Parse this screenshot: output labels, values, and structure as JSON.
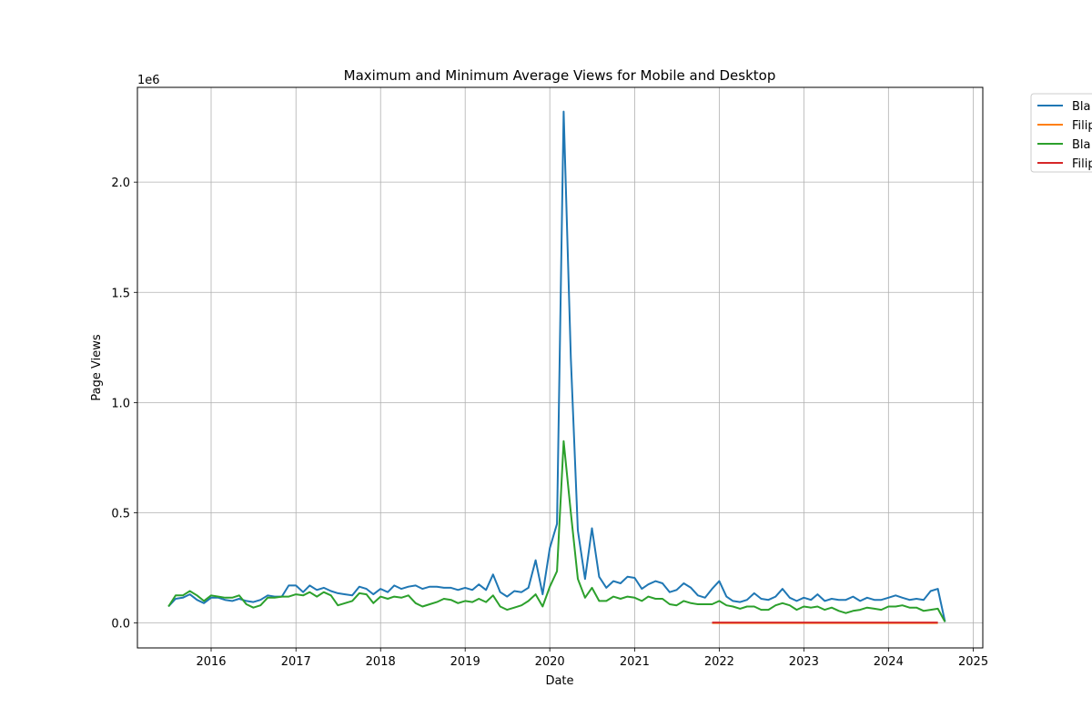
{
  "chart_data": {
    "type": "line",
    "title": "Maximum and Minimum Average Views for Mobile and Desktop",
    "xlabel": "Date",
    "ylabel": "Page Views",
    "y_offset_text": "1e6",
    "x_tick_labels": [
      "2016",
      "2017",
      "2018",
      "2019",
      "2020",
      "2021",
      "2022",
      "2023",
      "2024",
      "2025"
    ],
    "x_ticks": [
      "2016-01-01",
      "2017-01-01",
      "2018-01-01",
      "2019-01-01",
      "2020-01-01",
      "2021-01-01",
      "2022-01-01",
      "2023-01-01",
      "2024-01-01",
      "2025-01-01"
    ],
    "y_tick_labels": [
      "0.0",
      "0.5",
      "1.0",
      "1.5",
      "2.0"
    ],
    "y_ticks": [
      0,
      500000,
      1000000,
      1500000,
      2000000
    ],
    "xlim": [
      "2015-02-17",
      "2025-02-11"
    ],
    "ylim": [
      -113000,
      2430000
    ],
    "grid": true,
    "legend_position": "outside upper right",
    "series": [
      {
        "name": "Bla",
        "color": "#1f77b4",
        "x": [
          "2015-07-01",
          "2015-08-01",
          "2015-09-01",
          "2015-10-01",
          "2015-11-01",
          "2015-12-01",
          "2016-01-01",
          "2016-02-01",
          "2016-03-01",
          "2016-04-01",
          "2016-05-01",
          "2016-06-01",
          "2016-07-01",
          "2016-08-01",
          "2016-09-01",
          "2016-10-01",
          "2016-11-01",
          "2016-12-01",
          "2017-01-01",
          "2017-02-01",
          "2017-03-01",
          "2017-04-01",
          "2017-05-01",
          "2017-06-01",
          "2017-07-01",
          "2017-08-01",
          "2017-09-01",
          "2017-10-01",
          "2017-11-01",
          "2017-12-01",
          "2018-01-01",
          "2018-02-01",
          "2018-03-01",
          "2018-04-01",
          "2018-05-01",
          "2018-06-01",
          "2018-07-01",
          "2018-08-01",
          "2018-09-01",
          "2018-10-01",
          "2018-11-01",
          "2018-12-01",
          "2019-01-01",
          "2019-02-01",
          "2019-03-01",
          "2019-04-01",
          "2019-05-01",
          "2019-06-01",
          "2019-07-01",
          "2019-08-01",
          "2019-09-01",
          "2019-10-01",
          "2019-11-01",
          "2019-12-01",
          "2020-01-01",
          "2020-02-01",
          "2020-03-01",
          "2020-04-01",
          "2020-05-01",
          "2020-06-01",
          "2020-07-01",
          "2020-08-01",
          "2020-09-01",
          "2020-10-01",
          "2020-11-01",
          "2020-12-01",
          "2021-01-01",
          "2021-02-01",
          "2021-03-01",
          "2021-04-01",
          "2021-05-01",
          "2021-06-01",
          "2021-07-01",
          "2021-08-01",
          "2021-09-01",
          "2021-10-01",
          "2021-11-01",
          "2021-12-01",
          "2022-01-01",
          "2022-02-01",
          "2022-03-01",
          "2022-04-01",
          "2022-05-01",
          "2022-06-01",
          "2022-07-01",
          "2022-08-01",
          "2022-09-01",
          "2022-10-01",
          "2022-11-01",
          "2022-12-01",
          "2023-01-01",
          "2023-02-01",
          "2023-03-01",
          "2023-04-01",
          "2023-05-01",
          "2023-06-01",
          "2023-07-01",
          "2023-08-01",
          "2023-09-01",
          "2023-10-01",
          "2023-11-01",
          "2023-12-01",
          "2024-01-01",
          "2024-02-01",
          "2024-03-01",
          "2024-04-01",
          "2024-05-01",
          "2024-06-01",
          "2024-07-01",
          "2024-08-01",
          "2024-09-01"
        ],
        "values": [
          75000,
          110000,
          115000,
          130000,
          105000,
          90000,
          115000,
          115000,
          105000,
          100000,
          110000,
          100000,
          95000,
          105000,
          125000,
          120000,
          120000,
          170000,
          170000,
          140000,
          170000,
          150000,
          160000,
          145000,
          135000,
          130000,
          125000,
          165000,
          155000,
          130000,
          155000,
          140000,
          170000,
          155000,
          165000,
          170000,
          155000,
          165000,
          165000,
          160000,
          160000,
          150000,
          160000,
          150000,
          175000,
          150000,
          220000,
          140000,
          120000,
          145000,
          140000,
          160000,
          285000,
          130000,
          340000,
          450000,
          2320000,
          1200000,
          420000,
          200000,
          430000,
          210000,
          160000,
          190000,
          180000,
          210000,
          205000,
          155000,
          175000,
          190000,
          180000,
          140000,
          150000,
          180000,
          160000,
          125000,
          115000,
          155000,
          190000,
          120000,
          100000,
          95000,
          105000,
          135000,
          110000,
          105000,
          120000,
          155000,
          115000,
          100000,
          115000,
          105000,
          130000,
          100000,
          110000,
          105000,
          105000,
          120000,
          100000,
          115000,
          105000,
          105000,
          115000,
          125000,
          115000,
          105000,
          110000,
          105000,
          145000,
          155000,
          5000
        ]
      },
      {
        "name": "Filip",
        "color": "#ff7f0e",
        "x": [
          "2021-12-01",
          "2022-06-01",
          "2023-01-01",
          "2023-06-01",
          "2024-01-01",
          "2024-08-01"
        ],
        "values": [
          0,
          0,
          0,
          0,
          0,
          0
        ]
      },
      {
        "name": "Bla",
        "color": "#2ca02c",
        "x": [
          "2015-07-01",
          "2015-08-01",
          "2015-09-01",
          "2015-10-01",
          "2015-11-01",
          "2015-12-01",
          "2016-01-01",
          "2016-02-01",
          "2016-03-01",
          "2016-04-01",
          "2016-05-01",
          "2016-06-01",
          "2016-07-01",
          "2016-08-01",
          "2016-09-01",
          "2016-10-01",
          "2016-11-01",
          "2016-12-01",
          "2017-01-01",
          "2017-02-01",
          "2017-03-01",
          "2017-04-01",
          "2017-05-01",
          "2017-06-01",
          "2017-07-01",
          "2017-08-01",
          "2017-09-01",
          "2017-10-01",
          "2017-11-01",
          "2017-12-01",
          "2018-01-01",
          "2018-02-01",
          "2018-03-01",
          "2018-04-01",
          "2018-05-01",
          "2018-06-01",
          "2018-07-01",
          "2018-08-01",
          "2018-09-01",
          "2018-10-01",
          "2018-11-01",
          "2018-12-01",
          "2019-01-01",
          "2019-02-01",
          "2019-03-01",
          "2019-04-01",
          "2019-05-01",
          "2019-06-01",
          "2019-07-01",
          "2019-08-01",
          "2019-09-01",
          "2019-10-01",
          "2019-11-01",
          "2019-12-01",
          "2020-01-01",
          "2020-02-01",
          "2020-03-01",
          "2020-04-01",
          "2020-05-01",
          "2020-06-01",
          "2020-07-01",
          "2020-08-01",
          "2020-09-01",
          "2020-10-01",
          "2020-11-01",
          "2020-12-01",
          "2021-01-01",
          "2021-02-01",
          "2021-03-01",
          "2021-04-01",
          "2021-05-01",
          "2021-06-01",
          "2021-07-01",
          "2021-08-01",
          "2021-09-01",
          "2021-10-01",
          "2021-11-01",
          "2021-12-01",
          "2022-01-01",
          "2022-02-01",
          "2022-03-01",
          "2022-04-01",
          "2022-05-01",
          "2022-06-01",
          "2022-07-01",
          "2022-08-01",
          "2022-09-01",
          "2022-10-01",
          "2022-11-01",
          "2022-12-01",
          "2023-01-01",
          "2023-02-01",
          "2023-03-01",
          "2023-04-01",
          "2023-05-01",
          "2023-06-01",
          "2023-07-01",
          "2023-08-01",
          "2023-09-01",
          "2023-10-01",
          "2023-11-01",
          "2023-12-01",
          "2024-01-01",
          "2024-02-01",
          "2024-03-01",
          "2024-04-01",
          "2024-05-01",
          "2024-06-01",
          "2024-07-01",
          "2024-08-01",
          "2024-09-01"
        ],
        "values": [
          75000,
          125000,
          125000,
          145000,
          125000,
          100000,
          125000,
          120000,
          115000,
          115000,
          125000,
          85000,
          70000,
          80000,
          115000,
          115000,
          120000,
          120000,
          130000,
          125000,
          140000,
          120000,
          140000,
          125000,
          80000,
          90000,
          100000,
          135000,
          130000,
          90000,
          120000,
          110000,
          120000,
          115000,
          125000,
          90000,
          75000,
          85000,
          95000,
          110000,
          105000,
          90000,
          100000,
          95000,
          110000,
          95000,
          125000,
          75000,
          60000,
          70000,
          80000,
          100000,
          130000,
          75000,
          165000,
          235000,
          825000,
          500000,
          200000,
          115000,
          160000,
          100000,
          100000,
          120000,
          110000,
          120000,
          115000,
          100000,
          120000,
          110000,
          110000,
          85000,
          80000,
          100000,
          90000,
          85000,
          85000,
          85000,
          100000,
          80000,
          75000,
          65000,
          75000,
          75000,
          60000,
          60000,
          80000,
          90000,
          80000,
          60000,
          75000,
          70000,
          75000,
          60000,
          70000,
          55000,
          45000,
          55000,
          60000,
          70000,
          65000,
          60000,
          75000,
          75000,
          80000,
          70000,
          70000,
          55000,
          60000,
          65000,
          5000
        ]
      },
      {
        "name": "Filip",
        "color": "#d62728",
        "x": [
          "2021-12-01",
          "2022-06-01",
          "2023-01-01",
          "2023-06-01",
          "2024-01-01",
          "2024-08-01"
        ],
        "values": [
          2000,
          2000,
          2000,
          2000,
          2000,
          2000
        ]
      }
    ]
  }
}
